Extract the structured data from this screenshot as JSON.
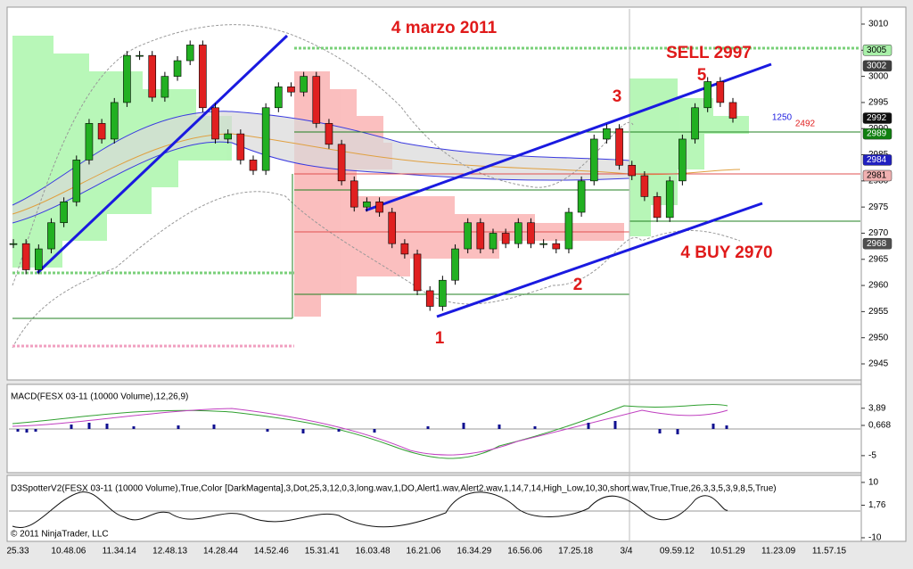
{
  "chart_data": {
    "type": "candlestick",
    "title": "4 marzo 2011",
    "closes": [
      2968,
      2963,
      2967,
      2972,
      2976,
      2984,
      2991,
      2988,
      2995,
      3004,
      3004,
      2996,
      3000,
      3003,
      3006,
      2994,
      2988,
      2989,
      2984,
      2982,
      2994,
      2998,
      2997,
      3000,
      2991,
      2987,
      2980,
      2975,
      2976,
      2974,
      2968,
      2966,
      2959,
      2956,
      2961,
      2967,
      2972,
      2967,
      2970,
      2968,
      2972,
      2968,
      2968,
      2967,
      2974,
      2980,
      2988,
      2990,
      2983,
      2981,
      2977,
      2973,
      2980,
      2988,
      2994,
      2999,
      2995,
      2992
    ],
    "up_color": "#22b022",
    "down_color": "#e02020",
    "ylim": [
      2942.1,
      3012.9
    ],
    "yticks": [
      3010,
      3005,
      3000,
      2995,
      2990,
      2985,
      2980,
      2975,
      2970,
      2965,
      2960,
      2955,
      2950,
      2945
    ],
    "xlabels": [
      "25.33",
      "10.48.06",
      "11.34.14",
      "12.48.13",
      "14.28.44",
      "14.52.46",
      "15.31.41",
      "16.03.48",
      "16.21.06",
      "16.34.29",
      "16.56.06",
      "17.25.18",
      "3/4",
      "09.59.12",
      "10.51.29",
      "11.23.09",
      "11.57.15"
    ],
    "annotations": [
      "SELL 2997",
      "5",
      "3",
      "1",
      "2",
      "4  BUY 2970"
    ],
    "price_tags": [
      {
        "value": 3005,
        "color": "#a8f0a8",
        "text_color": "#000000"
      },
      {
        "value": 3002,
        "color": "#404040",
        "text_color": "#ffffff"
      },
      {
        "value": 2992,
        "color": "#101010",
        "text_color": "#ffffff"
      },
      {
        "value": 2989,
        "color": "#108010",
        "text_color": "#ffffff"
      },
      {
        "value": 2984,
        "color": "#2020c0",
        "text_color": "#ffffff"
      },
      {
        "value": 2981,
        "color": "#f0b0b0",
        "text_color": "#000000"
      },
      {
        "value": 2968,
        "color": "#505050",
        "text_color": "#ffffff"
      }
    ],
    "profile_labels": [
      1250,
      2492
    ],
    "macd": {
      "label": "MACD(FESX 03-11 (10000 Volume),12,26,9)",
      "ylim": [
        8.2,
        -8.2
      ],
      "yticks": [
        {
          "value": 3.89,
          "label": "3,89"
        },
        {
          "value": 0.668,
          "label": "0,668"
        },
        -5
      ]
    },
    "spotter": {
      "label": "D3SpotterV2(FESX 03-11 (10000 Volume),True,Color [DarkMagenta],3,Dot,25,3,12,0,3,long.wav,1,DO,Alert1.wav,Alert2.wav,1,14,7,14,High_Low,10,30,short.wav,True,True,26,3,3,5,3,9,8,5,True)",
      "ylim": [
        11.9,
        -11.3
      ],
      "yticks": [
        10,
        {
          "value": 1.76,
          "label": "1,76"
        },
        -10
      ]
    },
    "copyright": "© 2011 NinjaTrader, LLC"
  }
}
